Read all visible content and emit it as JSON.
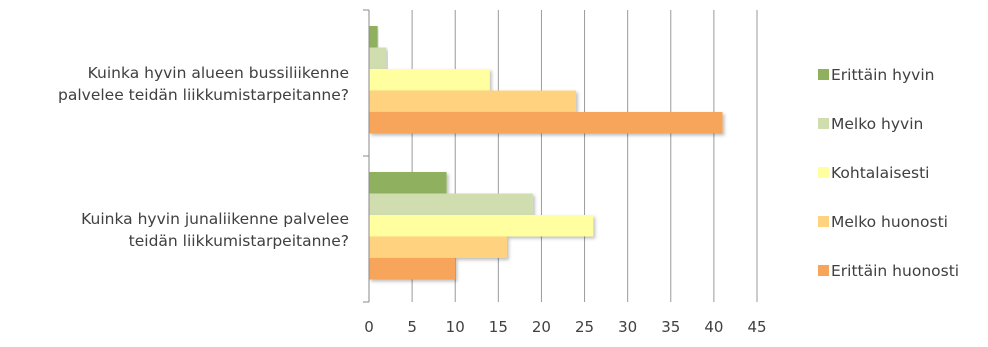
{
  "chart_data": {
    "type": "bar",
    "orientation": "horizontal",
    "categories": [
      "Kuinka hyvin alueen bussiliikenne palvelee teidän liikkumistarpeitanne?",
      "Kuinka hyvin junaliikenne palvelee teidän liikkumistarpeitanne?"
    ],
    "category_lines": [
      [
        "Kuinka hyvin alueen bussiliikenne",
        "palvelee teidän liikkumistarpeitanne?"
      ],
      [
        "Kuinka hyvin junaliikenne palvelee",
        "teidän liikkumistarpeitanne?"
      ]
    ],
    "series": [
      {
        "name": "Erittäin hyvin",
        "color": "#8FB15E",
        "values": [
          1,
          9
        ]
      },
      {
        "name": "Melko hyvin",
        "color": "#CFDDAF",
        "values": [
          2,
          19
        ]
      },
      {
        "name": "Kohtalaisesti",
        "color": "#FFFFA0",
        "values": [
          14,
          26
        ]
      },
      {
        "name": "Melko huonosti",
        "color": "#FFD27F",
        "values": [
          24,
          16
        ]
      },
      {
        "name": "Erittäin huonosti",
        "color": "#F6A55A",
        "values": [
          41,
          10
        ]
      }
    ],
    "xlim": [
      0,
      45
    ],
    "xticks": [
      0,
      5,
      10,
      15,
      20,
      25,
      30,
      35,
      40,
      45
    ],
    "grid": "vertical",
    "legend_position": "right",
    "title": "",
    "xlabel": "",
    "ylabel": ""
  }
}
